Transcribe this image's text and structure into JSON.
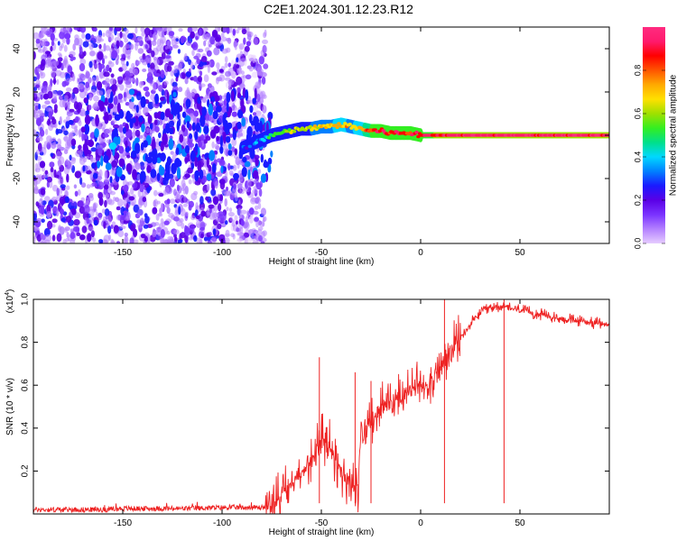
{
  "title": "C2E1.2024.301.12.23.R12",
  "chart_data": [
    {
      "type": "heatmap",
      "xlabel": "Height of straight line (km)",
      "ylabel": "Frequency (Hz)",
      "xlim": [
        -195,
        95
      ],
      "ylim": [
        -50,
        50
      ],
      "xticks": [
        -150,
        -100,
        -50,
        0,
        50
      ],
      "yticks": [
        -40,
        -20,
        0,
        20,
        40
      ],
      "colorbar": {
        "label": "Normalized spectral amplitude",
        "range": [
          0,
          1
        ],
        "ticks": [
          0.0,
          0.2,
          0.4,
          0.6,
          0.8
        ],
        "colors": [
          "#e6ccff",
          "#b380ff",
          "#7a33ff",
          "#5a00e6",
          "#1a1aff",
          "#0080ff",
          "#00d8ff",
          "#00e08a",
          "#33ee22",
          "#9fe000",
          "#ffe000",
          "#ffaa00",
          "#ff5500",
          "#ff0000",
          "#ff1a6c",
          "#ff2b80"
        ]
      },
      "ridge": {
        "x": [
          -90,
          -85,
          -80,
          -75,
          -70,
          -65,
          -60,
          -55,
          -50,
          -45,
          -40,
          -35,
          -30,
          -25,
          -20,
          -15,
          -10,
          -5,
          0,
          20,
          40,
          60,
          80,
          95
        ],
        "freq": [
          -6,
          -4,
          -2,
          0,
          1,
          2,
          3,
          3,
          4,
          4,
          5,
          4,
          3,
          2,
          2,
          1,
          1,
          1,
          0,
          0,
          0,
          0,
          0,
          0
        ],
        "amplitude": [
          0.25,
          0.3,
          0.35,
          0.5,
          0.55,
          0.6,
          0.6,
          0.65,
          0.7,
          0.7,
          0.75,
          0.7,
          0.75,
          0.85,
          0.9,
          0.85,
          0.9,
          0.85,
          0.9,
          0.95,
          0.95,
          0.95,
          0.95,
          0.95
        ]
      },
      "noise_region_x": [
        -195,
        -78
      ],
      "noise_amplitude": [
        0.05,
        0.3
      ]
    },
    {
      "type": "line",
      "xlabel": "Height of straight line (km)",
      "ylabel": "SNR (10 * v/v)",
      "y_multiplier": "(x10^4)",
      "xlim": [
        -195,
        95
      ],
      "ylim": [
        0,
        1.0
      ],
      "xticks": [
        -150,
        -100,
        -50,
        0,
        50
      ],
      "yticks": [
        0.2,
        0.4,
        0.6,
        0.8,
        1.0
      ],
      "color": "#ee2222",
      "series": [
        {
          "x": [
            -195,
            -180,
            -160,
            -150,
            -140,
            -120,
            -100,
            -90,
            -80,
            -75,
            -70,
            -65,
            -60,
            -55,
            -50,
            -45,
            -40,
            -35,
            -32,
            -30,
            -25,
            -20,
            -15,
            -10,
            -5,
            0,
            5,
            10,
            15,
            20,
            25,
            30,
            35,
            40,
            45,
            50,
            60,
            70,
            80,
            95
          ],
          "y": [
            0.02,
            0.02,
            0.02,
            0.025,
            0.025,
            0.025,
            0.03,
            0.03,
            0.03,
            0.04,
            0.08,
            0.15,
            0.2,
            0.25,
            0.35,
            0.3,
            0.2,
            0.15,
            0.08,
            0.35,
            0.45,
            0.5,
            0.52,
            0.55,
            0.58,
            0.6,
            0.62,
            0.68,
            0.75,
            0.82,
            0.88,
            0.94,
            0.96,
            0.97,
            0.96,
            0.95,
            0.93,
            0.91,
            0.9,
            0.88
          ]
        }
      ]
    }
  ]
}
